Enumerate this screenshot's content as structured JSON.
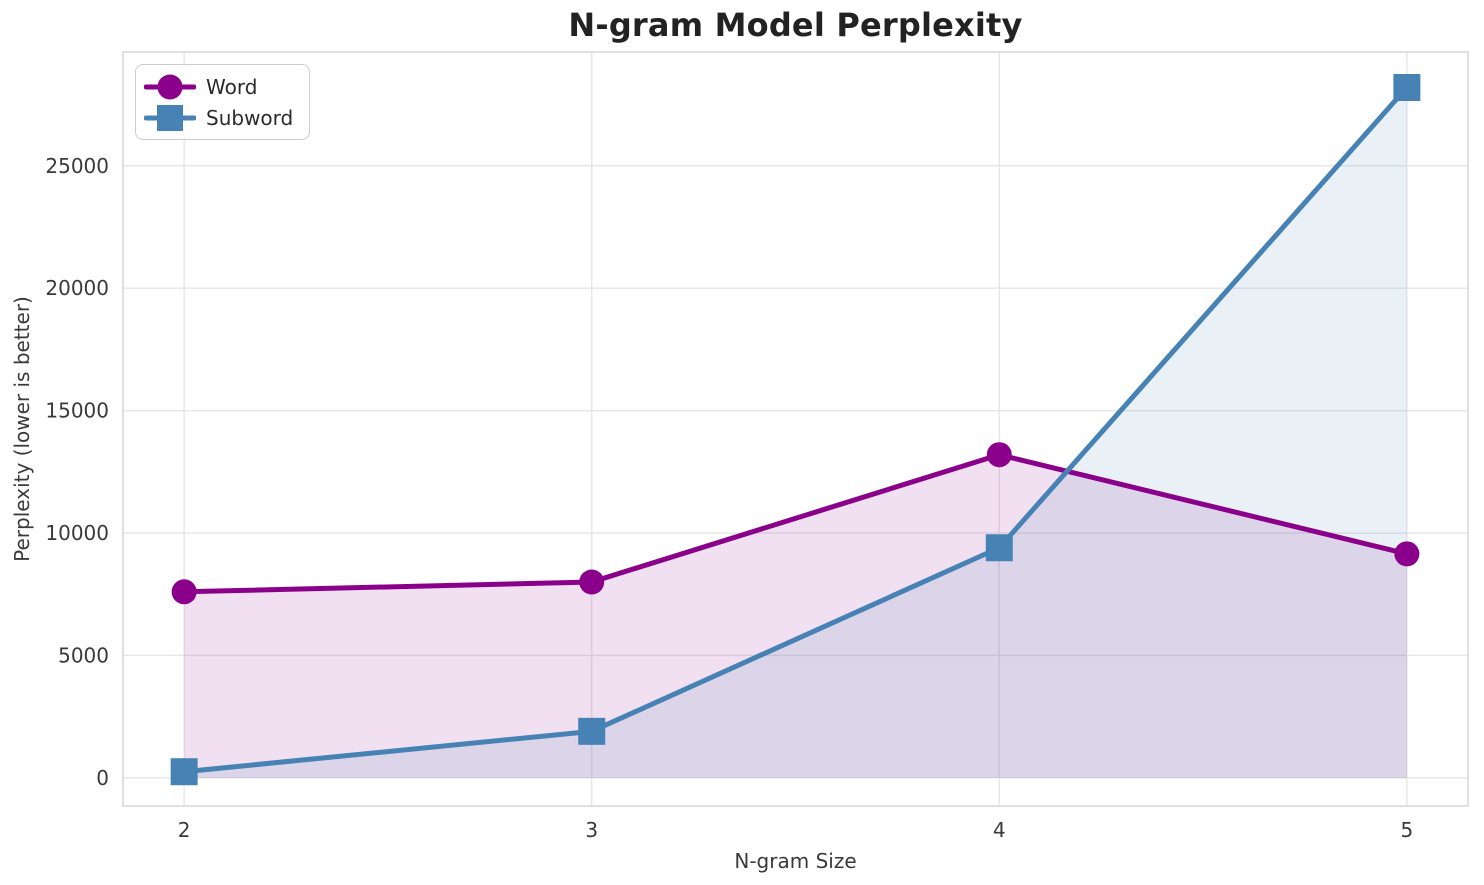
{
  "chart_data": {
    "type": "line",
    "title": "N-gram Model Perplexity",
    "xlabel": "N-gram Size",
    "ylabel": "Perplexity (lower is better)",
    "x": [
      2,
      3,
      4,
      5
    ],
    "series": [
      {
        "name": "Word",
        "values": [
          7600,
          8000,
          13200,
          9150
        ],
        "color": "#8B008B",
        "marker": "circle",
        "fill_to_zero": true
      },
      {
        "name": "Subword",
        "values": [
          250,
          1900,
          9400,
          28200
        ],
        "color": "#4682B4",
        "marker": "square",
        "fill_to_zero": true
      }
    ],
    "xticks": [
      "2",
      "3",
      "4",
      "5"
    ],
    "xtick_values": [
      2,
      3,
      4,
      5
    ],
    "yticks": [
      "0",
      "5000",
      "10000",
      "15000",
      "20000",
      "25000"
    ],
    "ytick_values": [
      0,
      5000,
      10000,
      15000,
      20000,
      25000
    ],
    "xlim": [
      1.85,
      5.15
    ],
    "ylim": [
      -1150,
      29650
    ],
    "grid": true,
    "legend_position": "upper left",
    "fill_opacity": 0.12,
    "line_width": 5,
    "grid_color": "#e6e6e6",
    "spine_color": "#d5d5d5",
    "tick_text_color": "#3a3a3a",
    "title_color": "#222222",
    "background_color": "#ffffff"
  }
}
